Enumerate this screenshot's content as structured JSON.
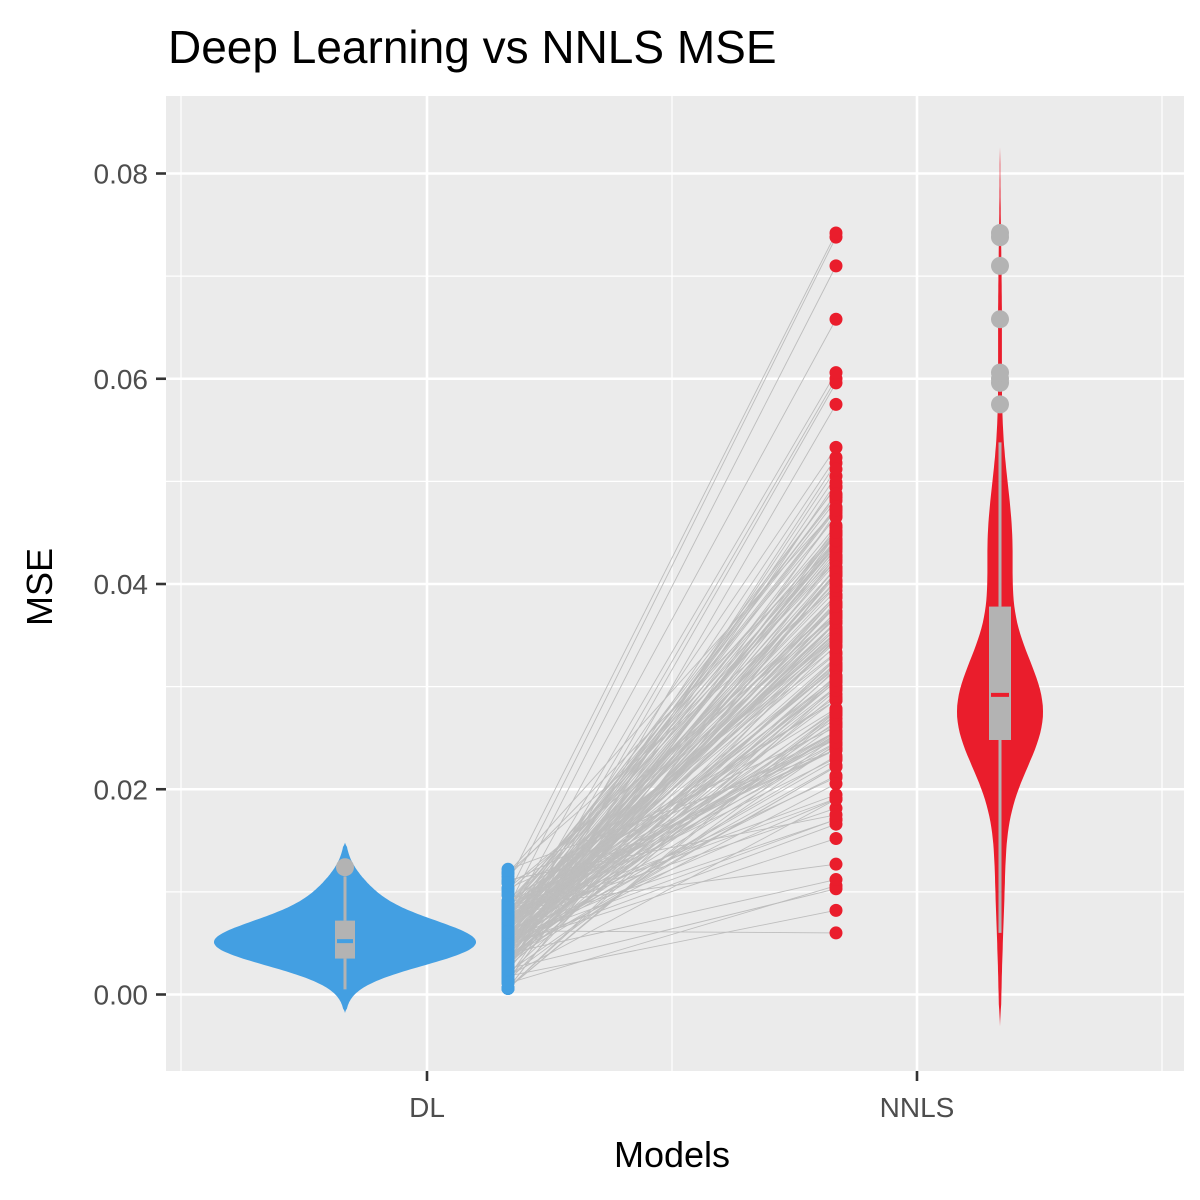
{
  "chart_data": {
    "type": "violin-paired",
    "title": "Deep Learning vs NNLS MSE",
    "xlabel": "Models",
    "ylabel": "MSE",
    "categories": [
      "DL",
      "NNLS"
    ],
    "ylim": [
      -0.007,
      0.087
    ],
    "yticks": [
      "0.00",
      "0.02",
      "0.04",
      "0.06",
      "0.08"
    ],
    "ytick_values": [
      0.0,
      0.02,
      0.04,
      0.06,
      0.08
    ],
    "grid": true,
    "colors": {
      "DL": "#439fe2",
      "NNLS": "#ea1d2c",
      "box": "#b3b3b3",
      "lines": "#bdbdbd",
      "panel": "#ebebeb",
      "grid": "#ffffff"
    },
    "series": [
      {
        "name": "DL",
        "box": {
          "min": 0.0005,
          "q1": 0.0035,
          "median": 0.0052,
          "q3": 0.0072,
          "max": 0.0115
        },
        "outliers": [
          0.0123,
          0.0125
        ],
        "violin_range": [
          -0.0018,
          0.0148
        ],
        "violin_peak": 0.005
      },
      {
        "name": "NNLS",
        "box": {
          "min": 0.006,
          "q1": 0.0248,
          "median": 0.0292,
          "q3": 0.0378,
          "max": 0.0538
        },
        "outliers": [
          0.0575,
          0.0596,
          0.06,
          0.0606,
          0.0658,
          0.071,
          0.0738,
          0.0742
        ],
        "violin_range": [
          -0.0031,
          0.0831
        ],
        "violin_peak": 0.0275
      }
    ]
  }
}
